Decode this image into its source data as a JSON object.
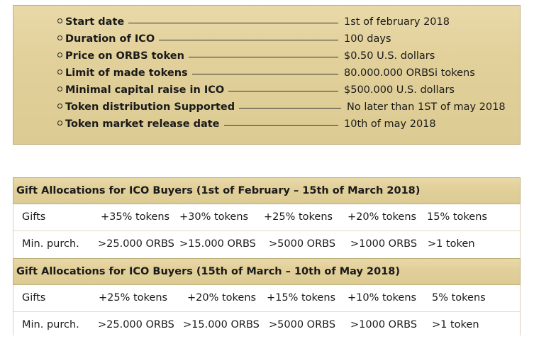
{
  "ico_details": [
    {
      "label": "Start date",
      "value": "1st of february 2018"
    },
    {
      "label": "Duration of  ICO",
      "value": "100 days"
    },
    {
      "label": "Price on ORBS token",
      "value": "$0.50 U.S. dollars"
    },
    {
      "label": "Limit of made tokens",
      "value": "80.000.000 ORBSi tokens"
    },
    {
      "label": "Minimal capital raise in ICO",
      "value": "$500.000 U.S. dollars"
    },
    {
      "label": "Token distribution Supported",
      "value": "No later than 1ST of may 2018"
    },
    {
      "label": "Token market release date",
      "value": "10th of may 2018"
    }
  ],
  "section1": {
    "title": "Gift Allocations for ICO Buyers (1st of February – 15th of March 2018)",
    "gifts": [
      "Gifts",
      "+35% tokens",
      "+30% tokens",
      "+25% tokens",
      "+20% tokens",
      "15%  tokens"
    ],
    "min": [
      "Min. purch.",
      ">25.000 ORBS",
      ">15.000 ORBS",
      ">5000 ORBS",
      ">1000 ORBS",
      ">1 token"
    ]
  },
  "section2": {
    "title": "Gift Allocations for ICO Buyers (15th of March – 10th of May 2018)",
    "gifts": [
      "Gifts",
      "+25% tokens",
      "+20% tokens",
      "+15% tokens",
      "+10% tokens",
      "5% tokens"
    ],
    "min": [
      "Min. purch.",
      ">25.000 ORBS",
      ">15.000 ORBS",
      ">5000 ORBS",
      ">1000 ORBS",
      ">1 token"
    ]
  }
}
